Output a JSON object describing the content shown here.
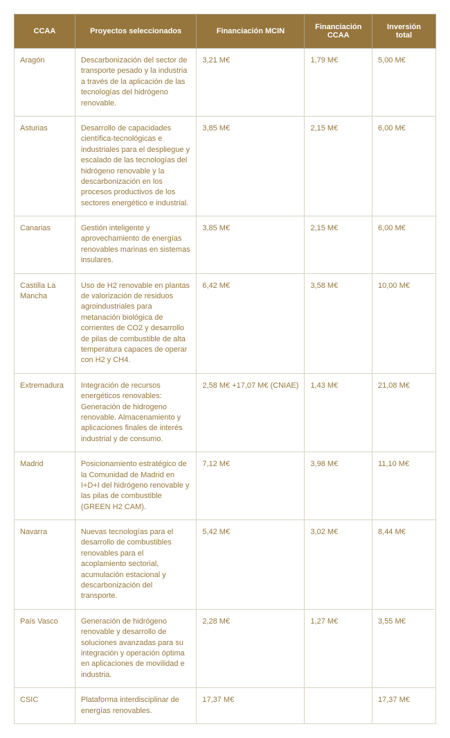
{
  "table": {
    "header_bg": "#96763c",
    "header_fg": "#ffffff",
    "cell_fg": "#96763c",
    "border_color": "#d8d2c2",
    "columns": [
      "CCAA",
      "Proyectos seleccionados",
      "Financiación MCIN",
      "Financiación CCAA",
      "Inversión total"
    ],
    "rows": [
      {
        "ccaa": "Aragón",
        "proyecto": "Descarbonización del sector de transporte pesado y la industria a través de la aplicación de las tecnologías del hidrógeno renovable.",
        "mcin": "3,21 M€",
        "fccaa": "1,79 M€",
        "total": "5,00 M€"
      },
      {
        "ccaa": "Asturias",
        "proyecto": "Desarrollo de capacidades científica-tecnológicas e industriales para el despliegue y escalado de las tecnologías del hidrógeno renovable y la descarbonización en los procesos productivos de los sectores energético e industrial.",
        "mcin": "3,85 M€",
        "fccaa": "2,15 M€",
        "total": "6,00 M€"
      },
      {
        "ccaa": "Canarias",
        "proyecto": "Gestión inteligente y aprovechamiento de energías renovables marinas en sistemas insulares.",
        "mcin": "3,85 M€",
        "fccaa": "2,15 M€",
        "total": "6,00 M€"
      },
      {
        "ccaa": "Castilla La Mancha",
        "proyecto": "Uso de H2 renovable en plantas de valorización de residuos agroindustriales para metanación biológica de corrientes de CO2 y desarrollo de pilas de combustible de alta temperatura capaces de operar con H2 y CH4.",
        "mcin": "6,42 M€",
        "fccaa": "3,58 M€",
        "total": "10,00 M€"
      },
      {
        "ccaa": "Extremadura",
        "proyecto": "Integración de recursos energéticos renovables: Generación de hidrogeno renovable. Almacenamiento y aplicaciones finales de interés industrial y de consumo.",
        "mcin": "2,58 M€ +17,07 M€ (CNIAE)",
        "fccaa": "1,43 M€",
        "total": "21,08 M€"
      },
      {
        "ccaa": "Madrid",
        "proyecto": "Posicionamiento estratégico de la Comunidad de Madrid en I+D+I del hidrógeno renovable y las pilas de combustible (GREEN H2 CAM).",
        "mcin": "7,12 M€",
        "fccaa": "3,98 M€",
        "total": "11,10 M€"
      },
      {
        "ccaa": "Navarra",
        "proyecto": "Nuevas tecnologías para el desarrollo de combustibles renovables para el acoplamiento sectorial, acumulación estacional y descarbonización del transporte.",
        "mcin": "5,42 M€",
        "fccaa": "3,02 M€",
        "total": "8,44 M€"
      },
      {
        "ccaa": "País Vasco",
        "proyecto": "Generación de hidrógeno renovable y desarrollo de soluciones avanzadas para su integración y operación óptima en aplicaciones de movilidad e industria.",
        "mcin": "2,28 M€",
        "fccaa": "1,27 M€",
        "total": "3,55 M€"
      },
      {
        "ccaa": "CSIC",
        "proyecto": "Plataforma interdisciplinar de energías renovables.",
        "mcin": "17,37 M€",
        "fccaa": "",
        "total": "17,37 M€"
      }
    ]
  }
}
